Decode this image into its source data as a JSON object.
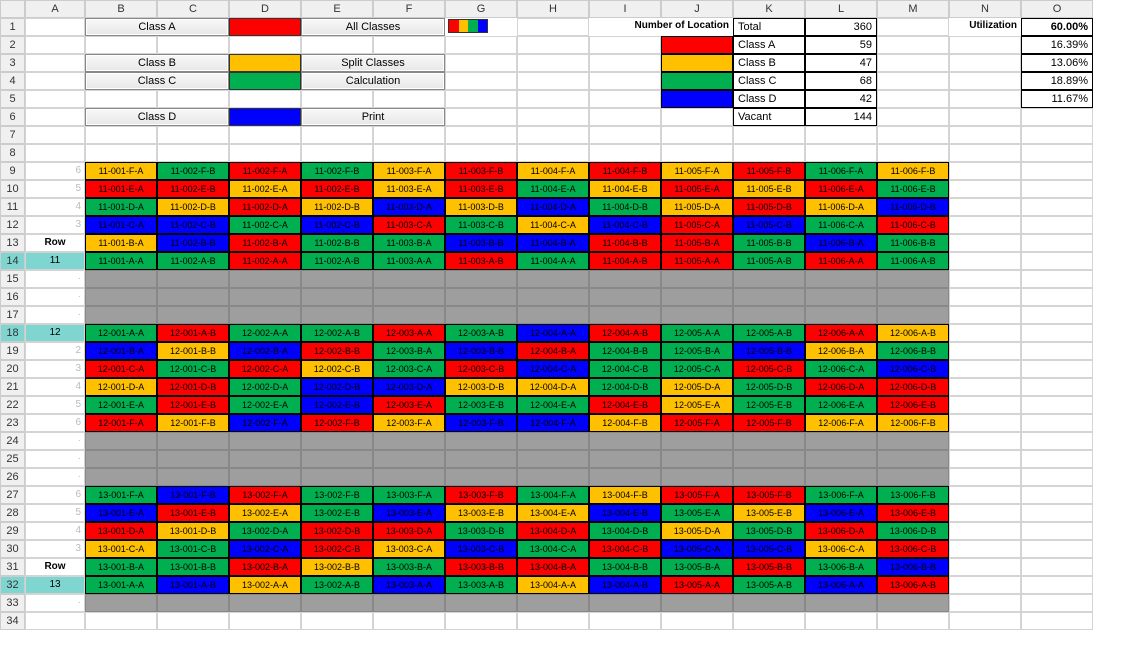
{
  "colors": {
    "classA": "#ff0000",
    "classB": "#ffc000",
    "classC": "#00b050",
    "classD": "#0000ff",
    "grey": "#9e9e9e",
    "text_light": "#000000",
    "text_dark_on_dark": "#000000"
  },
  "columns": [
    "A",
    "B",
    "C",
    "D",
    "E",
    "F",
    "G",
    "H",
    "I",
    "J",
    "K",
    "L",
    "M",
    "N",
    "O"
  ],
  "buttons": {
    "classA": "Class A",
    "classB": "Class B",
    "classC": "Class C",
    "classD": "Class D",
    "allClasses": "All Classes",
    "splitClasses": "Split Classes",
    "calculation": "Calculation",
    "print": "Print"
  },
  "summary": {
    "numLocLabel": "Number of Location",
    "totalLabel": "Total",
    "totalValue": "360",
    "rows": [
      {
        "label": "Class A",
        "value": "59",
        "color": "#ff0000",
        "pct": "16.39%"
      },
      {
        "label": "Class B",
        "value": "47",
        "color": "#ffc000",
        "pct": "13.06%"
      },
      {
        "label": "Class C",
        "value": "68",
        "color": "#00b050",
        "pct": "18.89%"
      },
      {
        "label": "Class D",
        "value": "42",
        "color": "#0000ff",
        "pct": "11.67%"
      }
    ],
    "vacantLabel": "Vacant",
    "vacantValue": "144",
    "utilLabel": "Utilization",
    "utilValue": "60.00%"
  },
  "rowLabel": "Row",
  "blocks": [
    {
      "rowNum": "11",
      "rowLabelAt": 5,
      "sideNums": [
        "6",
        "5",
        "4",
        "3",
        "2",
        ""
      ],
      "grid": [
        [
          [
            "11-001-F-A",
            "B"
          ],
          [
            "11-002-F-B",
            "C"
          ],
          [
            "11-002-F-A",
            "A"
          ],
          [
            "11-002-F-B",
            "C"
          ],
          [
            "11-003-F-A",
            "B"
          ],
          [
            "11-003-F-B",
            "A"
          ],
          [
            "11-004-F-A",
            "B"
          ],
          [
            "11-004-F-B",
            "A"
          ],
          [
            "11-005-F-A",
            "B"
          ],
          [
            "11-005-F-B",
            "A"
          ],
          [
            "11-006-F-A",
            "C"
          ],
          [
            "11-006-F-B",
            "B"
          ]
        ],
        [
          [
            "11-001-E-A",
            "A"
          ],
          [
            "11-002-E-B",
            "A"
          ],
          [
            "11-002-E-A",
            "B"
          ],
          [
            "11-002-E-B",
            "A"
          ],
          [
            "11-003-E-A",
            "B"
          ],
          [
            "11-003-E-B",
            "A"
          ],
          [
            "11-004-E-A",
            "C"
          ],
          [
            "11-004-E-B",
            "B"
          ],
          [
            "11-005-E-A",
            "A"
          ],
          [
            "11-005-E-B",
            "B"
          ],
          [
            "11-006-E-A",
            "A"
          ],
          [
            "11-006-E-B",
            "C"
          ]
        ],
        [
          [
            "11-001-D-A",
            "C"
          ],
          [
            "11-002-D-B",
            "B"
          ],
          [
            "11-002-D-A",
            "A"
          ],
          [
            "11-002-D-B",
            "B"
          ],
          [
            "11-003-D-A",
            "D"
          ],
          [
            "11-003-D-B",
            "B"
          ],
          [
            "11-004-D-A",
            "D"
          ],
          [
            "11-004-D-B",
            "C"
          ],
          [
            "11-005-D-A",
            "B"
          ],
          [
            "11-005-D-B",
            "A"
          ],
          [
            "11-006-D-A",
            "B"
          ],
          [
            "11-006-D-B",
            "D"
          ]
        ],
        [
          [
            "11-001-C-A",
            "D"
          ],
          [
            "11-002-C-B",
            "D"
          ],
          [
            "11-002-C-A",
            "C"
          ],
          [
            "11-002-C-B",
            "D"
          ],
          [
            "11-003-C-A",
            "A"
          ],
          [
            "11-003-C-B",
            "C"
          ],
          [
            "11-004-C-A",
            "B"
          ],
          [
            "11-004-C-B",
            "D"
          ],
          [
            "11-005-C-A",
            "A"
          ],
          [
            "11-005-C-B",
            "D"
          ],
          [
            "11-006-C-A",
            "C"
          ],
          [
            "11-006-C-B",
            "A"
          ]
        ],
        [
          [
            "11-001-B-A",
            "B"
          ],
          [
            "11-002-B-B",
            "D"
          ],
          [
            "11-002-B-A",
            "A"
          ],
          [
            "11-002-B-B",
            "C"
          ],
          [
            "11-003-B-A",
            "C"
          ],
          [
            "11-003-B-B",
            "D"
          ],
          [
            "11-004-B-A",
            "D"
          ],
          [
            "11-004-B-B",
            "A"
          ],
          [
            "11-005-B-A",
            "A"
          ],
          [
            "11-005-B-B",
            "C"
          ],
          [
            "11-006-B-A",
            "D"
          ],
          [
            "11-006-B-B",
            "C"
          ]
        ],
        [
          [
            "11-001-A-A",
            "C"
          ],
          [
            "11-002-A-B",
            "C"
          ],
          [
            "11-002-A-A",
            "A"
          ],
          [
            "11-002-A-B",
            "C"
          ],
          [
            "11-003-A-A",
            "C"
          ],
          [
            "11-003-A-B",
            "A"
          ],
          [
            "11-004-A-A",
            "C"
          ],
          [
            "11-004-A-B",
            "A"
          ],
          [
            "11-005-A-A",
            "A"
          ],
          [
            "11-005-A-B",
            "C"
          ],
          [
            "11-006-A-A",
            "A"
          ],
          [
            "11-006-A-B",
            "C"
          ]
        ]
      ]
    },
    {
      "rowNum": "12",
      "rowLabelAt": 0,
      "sideNums": [
        "",
        "2",
        "3",
        "4",
        "5",
        "6"
      ],
      "grid": [
        [
          [
            "12-001-A-A",
            "C"
          ],
          [
            "12-001-A-B",
            "A"
          ],
          [
            "12-002-A-A",
            "C"
          ],
          [
            "12-002-A-B",
            "C"
          ],
          [
            "12-003-A-A",
            "A"
          ],
          [
            "12-003-A-B",
            "C"
          ],
          [
            "12-004-A-A",
            "D"
          ],
          [
            "12-004-A-B",
            "A"
          ],
          [
            "12-005-A-A",
            "C"
          ],
          [
            "12-005-A-B",
            "C"
          ],
          [
            "12-006-A-A",
            "A"
          ],
          [
            "12-006-A-B",
            "B"
          ]
        ],
        [
          [
            "12-001-B-A",
            "D"
          ],
          [
            "12-001-B-B",
            "B"
          ],
          [
            "12-002-B-A",
            "D"
          ],
          [
            "12-002-B-B",
            "A"
          ],
          [
            "12-003-B-A",
            "C"
          ],
          [
            "12-003-B-B",
            "D"
          ],
          [
            "12-004-B-A",
            "A"
          ],
          [
            "12-004-B-B",
            "C"
          ],
          [
            "12-005-B-A",
            "C"
          ],
          [
            "12-005-B-B",
            "D"
          ],
          [
            "12-006-B-A",
            "B"
          ],
          [
            "12-006-B-B",
            "C"
          ]
        ],
        [
          [
            "12-001-C-A",
            "A"
          ],
          [
            "12-001-C-B",
            "C"
          ],
          [
            "12-002-C-A",
            "A"
          ],
          [
            "12-002-C-B",
            "B"
          ],
          [
            "12-003-C-A",
            "C"
          ],
          [
            "12-003-C-B",
            "A"
          ],
          [
            "12-004-C-A",
            "D"
          ],
          [
            "12-004-C-B",
            "C"
          ],
          [
            "12-005-C-A",
            "C"
          ],
          [
            "12-005-C-B",
            "A"
          ],
          [
            "12-006-C-A",
            "C"
          ],
          [
            "12-006-C-B",
            "D"
          ]
        ],
        [
          [
            "12-001-D-A",
            "B"
          ],
          [
            "12-001-D-B",
            "A"
          ],
          [
            "12-002-D-A",
            "C"
          ],
          [
            "12-002-D-B",
            "D"
          ],
          [
            "12-003-D-A",
            "D"
          ],
          [
            "12-003-D-B",
            "B"
          ],
          [
            "12-004-D-A",
            "B"
          ],
          [
            "12-004-D-B",
            "C"
          ],
          [
            "12-005-D-A",
            "B"
          ],
          [
            "12-005-D-B",
            "C"
          ],
          [
            "12-006-D-A",
            "A"
          ],
          [
            "12-006-D-B",
            "A"
          ]
        ],
        [
          [
            "12-001-E-A",
            "C"
          ],
          [
            "12-001-E-B",
            "A"
          ],
          [
            "12-002-E-A",
            "C"
          ],
          [
            "12-002-E-B",
            "D"
          ],
          [
            "12-003-E-A",
            "A"
          ],
          [
            "12-003-E-B",
            "C"
          ],
          [
            "12-004-E-A",
            "C"
          ],
          [
            "12-004-E-B",
            "A"
          ],
          [
            "12-005-E-A",
            "B"
          ],
          [
            "12-005-E-B",
            "C"
          ],
          [
            "12-006-E-A",
            "C"
          ],
          [
            "12-006-E-B",
            "A"
          ]
        ],
        [
          [
            "12-001-F-A",
            "A"
          ],
          [
            "12-001-F-B",
            "B"
          ],
          [
            "12-002-F-A",
            "D"
          ],
          [
            "12-002-F-B",
            "A"
          ],
          [
            "12-003-F-A",
            "B"
          ],
          [
            "12-003-F-B",
            "D"
          ],
          [
            "12-004-F-A",
            "D"
          ],
          [
            "12-004-F-B",
            "B"
          ],
          [
            "12-005-F-A",
            "A"
          ],
          [
            "12-005-F-B",
            "A"
          ],
          [
            "12-006-F-A",
            "B"
          ],
          [
            "12-006-F-B",
            "B"
          ]
        ]
      ]
    },
    {
      "rowNum": "13",
      "rowLabelAt": 5,
      "sideNums": [
        "6",
        "5",
        "4",
        "3",
        "2",
        ""
      ],
      "grid": [
        [
          [
            "13-001-F-A",
            "C"
          ],
          [
            "13-001-F-B",
            "D"
          ],
          [
            "13-002-F-A",
            "A"
          ],
          [
            "13-002-F-B",
            "C"
          ],
          [
            "13-003-F-A",
            "C"
          ],
          [
            "13-003-F-B",
            "A"
          ],
          [
            "13-004-F-A",
            "C"
          ],
          [
            "13-004-F-B",
            "B"
          ],
          [
            "13-005-F-A",
            "A"
          ],
          [
            "13-005-F-B",
            "A"
          ],
          [
            "13-006-F-A",
            "C"
          ],
          [
            "13-006-F-B",
            "C"
          ]
        ],
        [
          [
            "13-001-E-A",
            "D"
          ],
          [
            "13-001-E-B",
            "A"
          ],
          [
            "13-002-E-A",
            "B"
          ],
          [
            "13-002-E-B",
            "C"
          ],
          [
            "13-003-E-A",
            "D"
          ],
          [
            "13-003-E-B",
            "B"
          ],
          [
            "13-004-E-A",
            "B"
          ],
          [
            "13-004-E-B",
            "D"
          ],
          [
            "13-005-E-A",
            "C"
          ],
          [
            "13-005-E-B",
            "B"
          ],
          [
            "13-006-E-A",
            "D"
          ],
          [
            "13-006-E-B",
            "A"
          ]
        ],
        [
          [
            "13-001-D-A",
            "A"
          ],
          [
            "13-001-D-B",
            "B"
          ],
          [
            "13-002-D-A",
            "C"
          ],
          [
            "13-002-D-B",
            "A"
          ],
          [
            "13-003-D-A",
            "A"
          ],
          [
            "13-003-D-B",
            "C"
          ],
          [
            "13-004-D-A",
            "A"
          ],
          [
            "13-004-D-B",
            "C"
          ],
          [
            "13-005-D-A",
            "B"
          ],
          [
            "13-005-D-B",
            "C"
          ],
          [
            "13-006-D-A",
            "A"
          ],
          [
            "13-006-D-B",
            "C"
          ]
        ],
        [
          [
            "13-001-C-A",
            "B"
          ],
          [
            "13-001-C-B",
            "C"
          ],
          [
            "13-002-C-A",
            "D"
          ],
          [
            "13-002-C-B",
            "A"
          ],
          [
            "13-003-C-A",
            "B"
          ],
          [
            "13-003-C-B",
            "D"
          ],
          [
            "13-004-C-A",
            "C"
          ],
          [
            "13-004-C-B",
            "A"
          ],
          [
            "13-005-C-A",
            "D"
          ],
          [
            "13-005-C-B",
            "D"
          ],
          [
            "13-006-C-A",
            "B"
          ],
          [
            "13-006-C-B",
            "A"
          ]
        ],
        [
          [
            "13-001-B-A",
            "C"
          ],
          [
            "13-001-B-B",
            "C"
          ],
          [
            "13-002-B-A",
            "A"
          ],
          [
            "13-002-B-B",
            "B"
          ],
          [
            "13-003-B-A",
            "C"
          ],
          [
            "13-003-B-B",
            "A"
          ],
          [
            "13-004-B-A",
            "A"
          ],
          [
            "13-004-B-B",
            "C"
          ],
          [
            "13-005-B-A",
            "C"
          ],
          [
            "13-005-B-B",
            "A"
          ],
          [
            "13-006-B-A",
            "C"
          ],
          [
            "13-006-B-B",
            "D"
          ]
        ],
        [
          [
            "13-001-A-A",
            "C"
          ],
          [
            "13-001-A-B",
            "D"
          ],
          [
            "13-002-A-A",
            "B"
          ],
          [
            "13-002-A-B",
            "C"
          ],
          [
            "13-003-A-A",
            "D"
          ],
          [
            "13-003-A-B",
            "C"
          ],
          [
            "13-004-A-A",
            "B"
          ],
          [
            "13-004-A-B",
            "D"
          ],
          [
            "13-005-A-A",
            "A"
          ],
          [
            "13-005-A-B",
            "C"
          ],
          [
            "13-006-A-A",
            "D"
          ],
          [
            "13-006-A-B",
            "A"
          ]
        ]
      ]
    }
  ]
}
